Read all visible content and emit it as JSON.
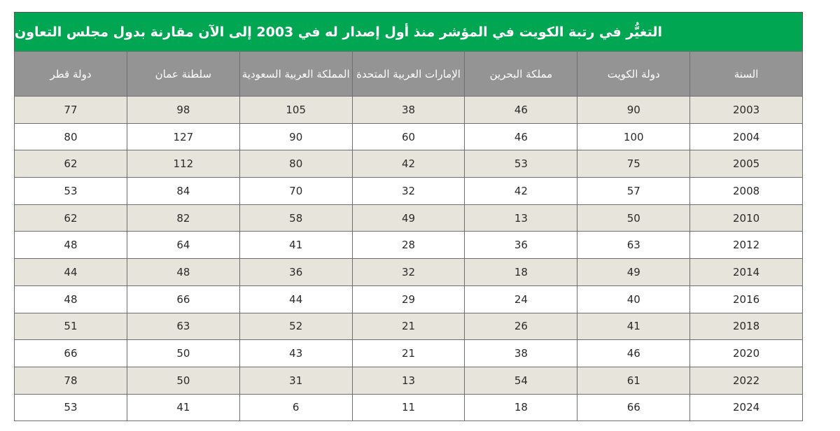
{
  "title": "التغيُّر في رتبة الكويت في المؤشر منذ أول إصدار له في 2003 إلى الآن مقارنة بدول مجلس التعاون",
  "colors": {
    "title_bar": "#00a651",
    "header_bg": "#949494",
    "row_shaded": "#e7e5db",
    "row_plain": "#ffffff",
    "border": "#6e6e6e"
  },
  "table": {
    "headers": [
      "السنة",
      "دولة الكويت",
      "مملكة البحرين",
      "الإمارات العربية المتحدة",
      "المملكة العربية السعودية",
      "سلطنة عمان",
      "دولة قطر"
    ],
    "rows": [
      [
        "2003",
        "90",
        "46",
        "38",
        "105",
        "98",
        "77"
      ],
      [
        "2004",
        "100",
        "46",
        "60",
        "90",
        "127",
        "80"
      ],
      [
        "2005",
        "75",
        "53",
        "42",
        "80",
        "112",
        "62"
      ],
      [
        "2008",
        "57",
        "42",
        "32",
        "70",
        "84",
        "53"
      ],
      [
        "2010",
        "50",
        "13",
        "49",
        "58",
        "82",
        "62"
      ],
      [
        "2012",
        "63",
        "36",
        "28",
        "41",
        "64",
        "48"
      ],
      [
        "2014",
        "49",
        "18",
        "32",
        "36",
        "48",
        "44"
      ],
      [
        "2016",
        "40",
        "24",
        "29",
        "44",
        "66",
        "48"
      ],
      [
        "2018",
        "41",
        "26",
        "21",
        "52",
        "63",
        "51"
      ],
      [
        "2020",
        "46",
        "38",
        "21",
        "43",
        "50",
        "66"
      ],
      [
        "2022",
        "61",
        "54",
        "13",
        "31",
        "50",
        "78"
      ],
      [
        "2024",
        "66",
        "18",
        "11",
        "6",
        "41",
        "53"
      ]
    ]
  }
}
